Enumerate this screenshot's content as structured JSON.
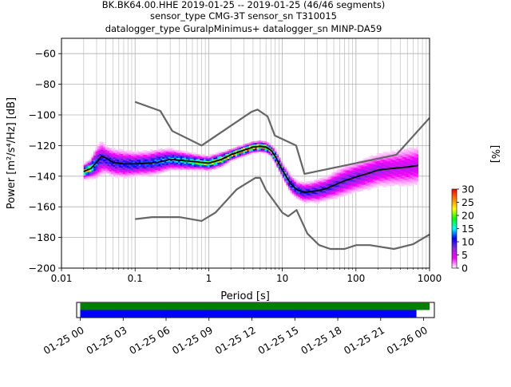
{
  "header": {
    "line1": "BK.BK64.00.HHE   2019-01-25 -- 2019-01-25  (46/46 segments)",
    "line2": "sensor_type CMG-3T sensor_sn T310015",
    "line3": "datalogger_type GuralpMinimus+ datalogger_sn MINP-DA59"
  },
  "chart_data": [
    {
      "type": "heatmap",
      "title": "",
      "xlabel": "Period [s]",
      "ylabel": "Power [m²/s⁴/Hz] [dB]",
      "xscale": "log",
      "xlim": [
        0.01,
        1000
      ],
      "ylim": [
        -200,
        -50
      ],
      "xticks": [
        0.01,
        0.1,
        1,
        10,
        100,
        1000
      ],
      "xtick_labels": [
        "0.01",
        "0.1",
        "1",
        "10",
        "100",
        "1000"
      ],
      "yticks": [
        -200,
        -180,
        -160,
        -140,
        -120,
        -100,
        -80,
        -60
      ],
      "ytick_labels": [
        "−200",
        "−180",
        "−160",
        "−140",
        "−120",
        "−100",
        "−80",
        "−60"
      ],
      "grid": true,
      "colorbar": {
        "label": "[%]",
        "range": [
          0,
          30
        ],
        "ticks": [
          0,
          5,
          10,
          15,
          20,
          25,
          30
        ],
        "tick_labels": [
          "0",
          "5",
          "10",
          "15",
          "20",
          "25",
          "30"
        ],
        "colormap": [
          "#ffffff",
          "#ff00ff",
          "#8a2be2",
          "#0000ff",
          "#00ffff",
          "#00ff00",
          "#ffff00",
          "#ff8000",
          "#ff0000"
        ]
      },
      "noise_models": [
        {
          "name": "NHNM",
          "color": "#666666",
          "x": [
            0.1,
            0.22,
            0.32,
            0.8,
            3.8,
            4.6,
            6.3,
            7.9,
            15.4,
            20,
            354.8,
            10000
          ],
          "y": [
            -91.5,
            -97.4,
            -110.5,
            -120,
            -98,
            -96.5,
            -101,
            -113.5,
            -120,
            -138.5,
            -126,
            -48.5
          ]
        },
        {
          "name": "NLNM",
          "color": "#666666",
          "x": [
            0.1,
            0.17,
            0.4,
            0.8,
            1.24,
            2.4,
            4.3,
            5,
            6,
            10,
            12,
            15.6,
            21.9,
            31.6,
            45,
            70,
            101,
            154,
            328,
            600,
            1000
          ],
          "y": [
            -168,
            -166.7,
            -166.7,
            -169.2,
            -163.7,
            -148.6,
            -141.1,
            -141.1,
            -149,
            -163.8,
            -166.2,
            -162.1,
            -177.5,
            -185,
            -187.5,
            -187.5,
            -185,
            -185,
            -187.5,
            -184.4,
            -178
          ]
        }
      ],
      "mean_psd": {
        "color": "#000000",
        "x": [
          0.02,
          0.025,
          0.03,
          0.035,
          0.04,
          0.05,
          0.07,
          0.1,
          0.15,
          0.2,
          0.3,
          0.5,
          0.8,
          1,
          1.5,
          2,
          3,
          4,
          5,
          6,
          7,
          8,
          10,
          13,
          16,
          20,
          25,
          30,
          40,
          50,
          70,
          100,
          150,
          200,
          300,
          500,
          700
        ],
        "y": [
          -137,
          -135,
          -131,
          -127,
          -128,
          -131,
          -132,
          -132,
          -131.5,
          -131,
          -129,
          -130,
          -131,
          -131.5,
          -129,
          -126,
          -123,
          -121,
          -120.5,
          -121,
          -123,
          -127,
          -136,
          -145,
          -149,
          -150.5,
          -150,
          -149.5,
          -148,
          -146,
          -143,
          -140.5,
          -138,
          -136,
          -135,
          -134,
          -133
        ]
      },
      "distribution": [
        {
          "x": 0.02,
          "y": -137,
          "spread": 4,
          "pct": 20
        },
        {
          "x": 0.025,
          "y": -135,
          "spread": 5,
          "pct": 18
        },
        {
          "x": 0.03,
          "y": -131,
          "spread": 9,
          "pct": 10
        },
        {
          "x": 0.035,
          "y": -128,
          "spread": 10,
          "pct": 8
        },
        {
          "x": 0.04,
          "y": -129,
          "spread": 8,
          "pct": 9
        },
        {
          "x": 0.05,
          "y": -131,
          "spread": 8,
          "pct": 9
        },
        {
          "x": 0.07,
          "y": -132,
          "spread": 8,
          "pct": 9
        },
        {
          "x": 0.1,
          "y": -132,
          "spread": 7,
          "pct": 10
        },
        {
          "x": 0.15,
          "y": -131.5,
          "spread": 7,
          "pct": 10
        },
        {
          "x": 0.2,
          "y": -130.5,
          "spread": 7,
          "pct": 11
        },
        {
          "x": 0.3,
          "y": -129,
          "spread": 6,
          "pct": 12
        },
        {
          "x": 0.5,
          "y": -130,
          "spread": 5,
          "pct": 14
        },
        {
          "x": 0.8,
          "y": -131,
          "spread": 4,
          "pct": 18
        },
        {
          "x": 1,
          "y": -131.5,
          "spread": 4,
          "pct": 18
        },
        {
          "x": 1.5,
          "y": -129,
          "spread": 4,
          "pct": 20
        },
        {
          "x": 2,
          "y": -126,
          "spread": 3,
          "pct": 22
        },
        {
          "x": 3,
          "y": -123,
          "spread": 3,
          "pct": 24
        },
        {
          "x": 4,
          "y": -121,
          "spread": 3,
          "pct": 24
        },
        {
          "x": 5,
          "y": -120.5,
          "spread": 3,
          "pct": 24
        },
        {
          "x": 6,
          "y": -121,
          "spread": 3,
          "pct": 22
        },
        {
          "x": 7,
          "y": -123,
          "spread": 3,
          "pct": 20
        },
        {
          "x": 8,
          "y": -127,
          "spread": 4,
          "pct": 18
        },
        {
          "x": 10,
          "y": -136,
          "spread": 4,
          "pct": 16
        },
        {
          "x": 13,
          "y": -145,
          "spread": 5,
          "pct": 12
        },
        {
          "x": 16,
          "y": -149,
          "spread": 5,
          "pct": 10
        },
        {
          "x": 20,
          "y": -150.5,
          "spread": 6,
          "pct": 9
        },
        {
          "x": 25,
          "y": -150,
          "spread": 6,
          "pct": 9
        },
        {
          "x": 30,
          "y": -149.5,
          "spread": 7,
          "pct": 8
        },
        {
          "x": 40,
          "y": -148,
          "spread": 7,
          "pct": 8
        },
        {
          "x": 50,
          "y": -146,
          "spread": 8,
          "pct": 8
        },
        {
          "x": 70,
          "y": -143,
          "spread": 9,
          "pct": 7
        },
        {
          "x": 100,
          "y": -140.5,
          "spread": 9,
          "pct": 7
        },
        {
          "x": 150,
          "y": -138,
          "spread": 10,
          "pct": 6
        },
        {
          "x": 200,
          "y": -136,
          "spread": 10,
          "pct": 6
        },
        {
          "x": 300,
          "y": -135,
          "spread": 11,
          "pct": 5
        },
        {
          "x": 500,
          "y": -134,
          "spread": 12,
          "pct": 5
        },
        {
          "x": 700,
          "y": -133,
          "spread": 12,
          "pct": 5
        }
      ]
    },
    {
      "type": "timeline",
      "title": "",
      "xlabel": "",
      "xlim": [
        "2019-01-24 23:45",
        "2019-01-26 00:45"
      ],
      "xticks": [
        "2019-01-25 00:00",
        "2019-01-25 03:00",
        "2019-01-25 06:00",
        "2019-01-25 09:00",
        "2019-01-25 12:00",
        "2019-01-25 15:00",
        "2019-01-25 18:00",
        "2019-01-25 21:00",
        "2019-01-26 00:00"
      ],
      "xtick_labels": [
        "01-25 00",
        "01-25 03",
        "01-25 06",
        "01-25 09",
        "01-25 12",
        "01-25 15",
        "01-25 18",
        "01-25 21",
        "01-26 00"
      ],
      "series": [
        {
          "color": "#008000",
          "start": "2019-01-25 00:00",
          "end": "2019-01-26 00:25"
        },
        {
          "color": "#0000ff",
          "start": "2019-01-25 00:00",
          "end": "2019-01-25 23:30"
        }
      ]
    }
  ]
}
